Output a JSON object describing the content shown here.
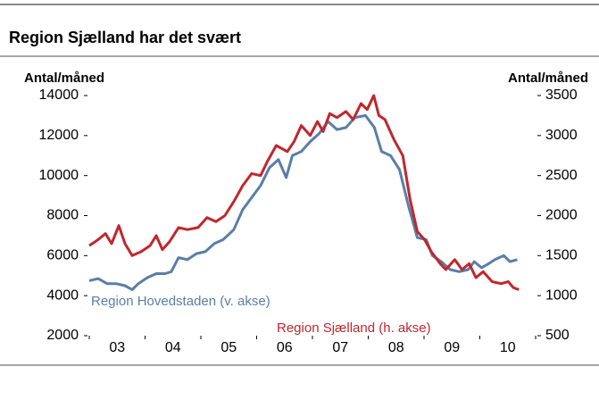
{
  "chart_data": {
    "type": "line",
    "title": "Region Sjælland har det svært",
    "y_label": "Antal/måned",
    "y2_label": "Antal/måned",
    "xlim": [
      2003,
      2011
    ],
    "xticks": [
      {
        "value": 2003.5,
        "label": "03"
      },
      {
        "value": 2004.5,
        "label": "04"
      },
      {
        "value": 2005.5,
        "label": "05"
      },
      {
        "value": 2006.5,
        "label": "06"
      },
      {
        "value": 2007.5,
        "label": "07"
      },
      {
        "value": 2008.5,
        "label": "08"
      },
      {
        "value": 2009.5,
        "label": "09"
      },
      {
        "value": 2010.5,
        "label": "10"
      }
    ],
    "x_minor_ticks": [
      2003,
      2004,
      2005,
      2006,
      2007,
      2008,
      2009,
      2010,
      2011
    ],
    "ylim": [
      2000,
      14000
    ],
    "yticks": [
      2000,
      4000,
      6000,
      8000,
      10000,
      12000,
      14000
    ],
    "y2lim": [
      500,
      3500
    ],
    "y2ticks": [
      500,
      1000,
      1500,
      2000,
      2500,
      3000,
      3500
    ],
    "series": [
      {
        "name": "Region Hovedstaden (v. akse)",
        "color": "#5a7ea8",
        "x": [
          2003,
          2003.16,
          2003.32,
          2003.48,
          2003.64,
          2003.77,
          2003.88,
          2004.04,
          2004.2,
          2004.36,
          2004.47,
          2004.6,
          2004.76,
          2004.92,
          2005.08,
          2005.24,
          2005.4,
          2005.59,
          2005.75,
          2005.91,
          2006.07,
          2006.23,
          2006.39,
          2006.53,
          2006.64,
          2006.8,
          2006.96,
          2007.12,
          2007.28,
          2007.44,
          2007.6,
          2007.76,
          2007.95,
          2008.11,
          2008.24,
          2008.4,
          2008.56,
          2008.72,
          2008.88,
          2009.04,
          2009.15,
          2009.31,
          2009.47,
          2009.63,
          2009.79,
          2009.9,
          2010.03,
          2010.16,
          2010.27,
          2010.43,
          2010.54,
          2010.67
        ],
        "values": [
          4750,
          4850,
          4600,
          4600,
          4500,
          4300,
          4600,
          4900,
          5100,
          5100,
          5200,
          5900,
          5800,
          6100,
          6200,
          6600,
          6800,
          7300,
          8300,
          8900,
          9500,
          10400,
          10800,
          9900,
          11000,
          11200,
          11700,
          12100,
          12700,
          12300,
          12400,
          12900,
          13000,
          12400,
          11200,
          11000,
          10300,
          8500,
          6900,
          6800,
          6000,
          5700,
          5300,
          5200,
          5300,
          5700,
          5400,
          5600,
          5800,
          6000,
          5700,
          5800
        ]
      },
      {
        "name": "Region Sjælland (h. akse)",
        "color": "#c0272d",
        "axis": "y2",
        "x": [
          2003,
          2003.16,
          2003.29,
          2003.4,
          2003.53,
          2003.64,
          2003.77,
          2003.93,
          2004.09,
          2004.2,
          2004.31,
          2004.44,
          2004.6,
          2004.76,
          2004.95,
          2005.11,
          2005.27,
          2005.43,
          2005.59,
          2005.75,
          2005.91,
          2006.07,
          2006.19,
          2006.35,
          2006.55,
          2006.67,
          2006.8,
          2006.96,
          2007.09,
          2007.19,
          2007.31,
          2007.44,
          2007.6,
          2007.73,
          2007.87,
          2007.98,
          2008.1,
          2008.19,
          2008.3,
          2008.46,
          2008.62,
          2008.75,
          2008.88,
          2009.01,
          2009.13,
          2009.29,
          2009.39,
          2009.55,
          2009.68,
          2009.81,
          2009.93,
          2010.06,
          2010.22,
          2010.38,
          2010.51,
          2010.6,
          2010.7
        ],
        "values": [
          1625,
          1700,
          1775,
          1650,
          1875,
          1650,
          1500,
          1550,
          1625,
          1750,
          1575,
          1675,
          1850,
          1825,
          1850,
          1975,
          1925,
          2000,
          2175,
          2375,
          2525,
          2500,
          2675,
          2875,
          2800,
          2925,
          3125,
          3000,
          3175,
          3050,
          3275,
          3225,
          3300,
          3200,
          3400,
          3325,
          3500,
          3250,
          3200,
          2950,
          2750,
          2200,
          1800,
          1700,
          1550,
          1400,
          1325,
          1450,
          1325,
          1400,
          1225,
          1300,
          1175,
          1150,
          1175,
          1100,
          1075
        ]
      }
    ]
  }
}
